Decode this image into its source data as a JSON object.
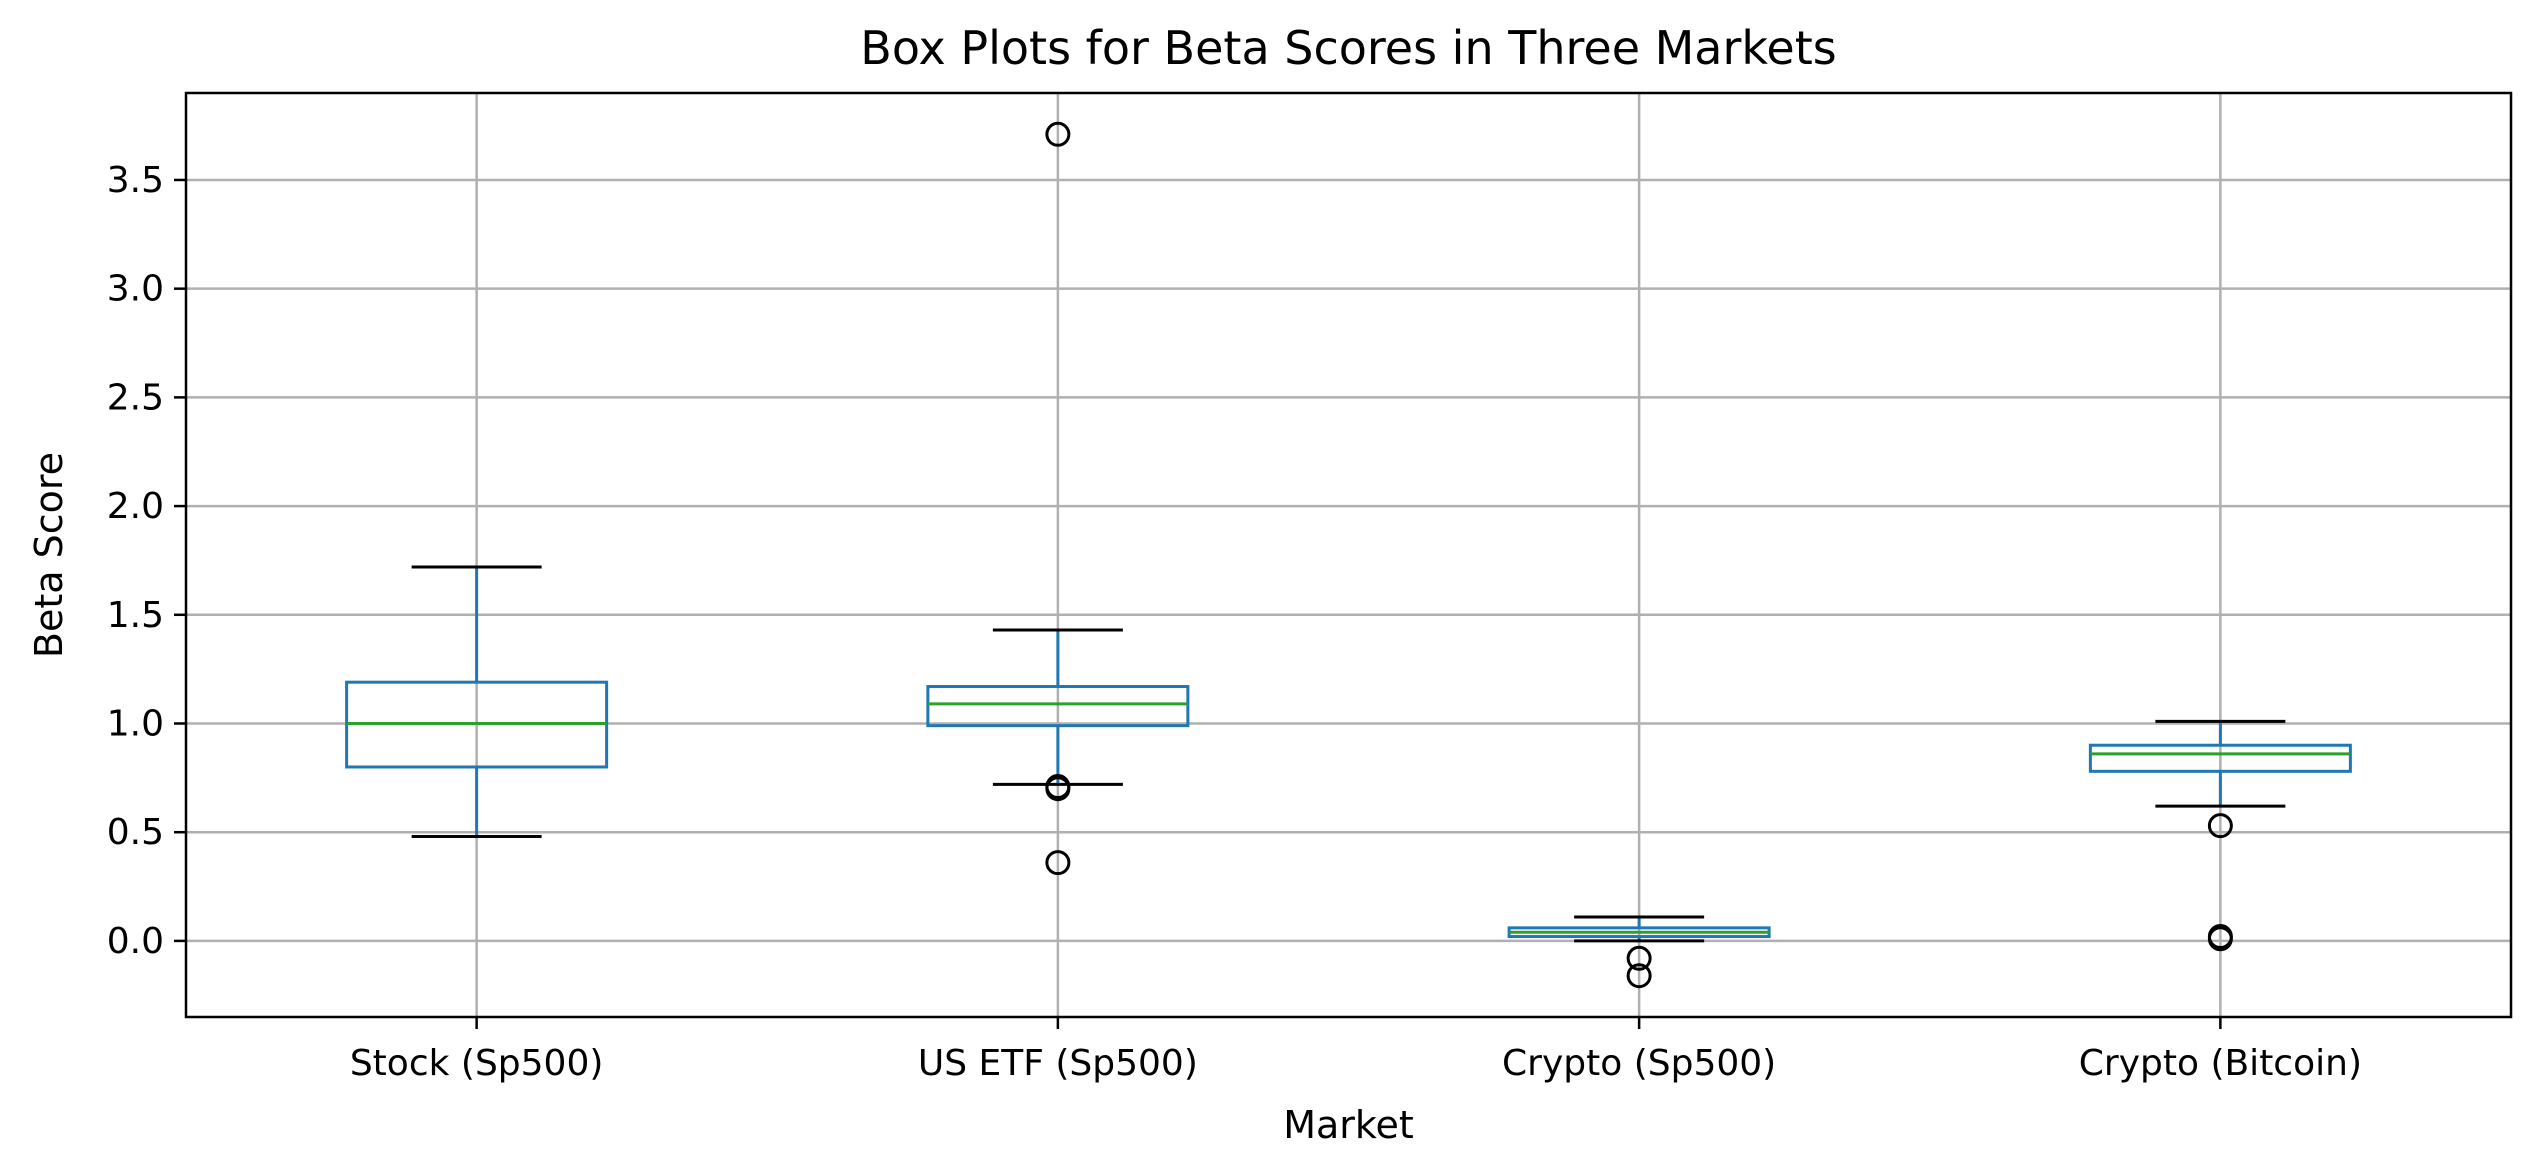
{
  "chart_data": {
    "type": "box",
    "title": "Box Plots for Beta Scores in Three Markets",
    "xlabel": "Market",
    "ylabel": "Beta Score",
    "ylim": [
      -0.35,
      3.9
    ],
    "grid": true,
    "yticks": [
      0.0,
      0.5,
      1.0,
      1.5,
      2.0,
      2.5,
      3.0,
      3.5
    ],
    "ytick_labels": [
      "0.0",
      "0.5",
      "1.0",
      "1.5",
      "2.0",
      "2.5",
      "3.0",
      "3.5"
    ],
    "categories": [
      "Stock (Sp500)",
      "US ETF (Sp500)",
      "Crypto (Sp500)",
      "Crypto (Bitcoin)"
    ],
    "boxes": [
      {
        "name": "Stock (Sp500)",
        "whisker_low": 0.48,
        "q1": 0.8,
        "median": 1.0,
        "q3": 1.19,
        "whisker_high": 1.72,
        "outliers": []
      },
      {
        "name": "US ETF (Sp500)",
        "whisker_low": 0.72,
        "q1": 0.99,
        "median": 1.09,
        "q3": 1.17,
        "whisker_high": 1.43,
        "outliers": [
          3.71,
          0.71,
          0.7,
          0.36
        ]
      },
      {
        "name": "Crypto (Sp500)",
        "whisker_low": 0.0,
        "q1": 0.02,
        "median": 0.04,
        "q3": 0.06,
        "whisker_high": 0.11,
        "outliers": [
          -0.08,
          -0.16
        ]
      },
      {
        "name": "Crypto (Bitcoin)",
        "whisker_low": 0.62,
        "q1": 0.78,
        "median": 0.86,
        "q3": 0.9,
        "whisker_high": 1.01,
        "outliers": [
          0.53,
          0.02,
          0.01
        ]
      }
    ],
    "colors": {
      "box": "#1f77b4",
      "median": "#2ca02c",
      "whisker_cap": "#000000",
      "outlier": "#000000",
      "grid": "#b0b0b0"
    }
  }
}
